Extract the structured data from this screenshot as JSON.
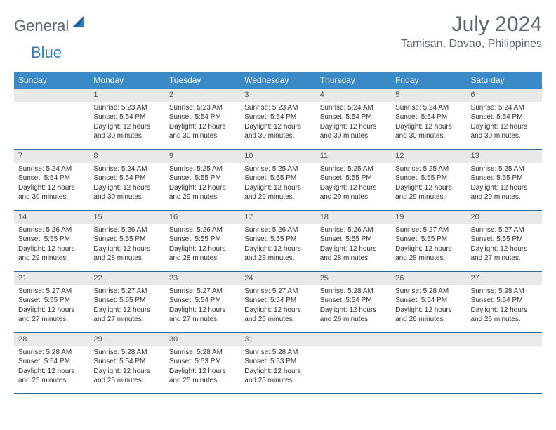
{
  "logo": {
    "general": "General",
    "blue": "Blue"
  },
  "title": "July 2024",
  "location": "Tamisan, Davao, Philippines",
  "weekday_header_bg": "#3a8ac8",
  "weekday_header_fg": "#ffffff",
  "daynum_bg": "#e9e9e9",
  "week_border_color": "#2b6a9e",
  "weekdays": [
    "Sunday",
    "Monday",
    "Tuesday",
    "Wednesday",
    "Thursday",
    "Friday",
    "Saturday"
  ],
  "weeks": [
    [
      {
        "day": "",
        "sunrise": "",
        "sunset": "",
        "daylight": ""
      },
      {
        "day": "1",
        "sunrise": "Sunrise: 5:23 AM",
        "sunset": "Sunset: 5:54 PM",
        "daylight": "Daylight: 12 hours and 30 minutes."
      },
      {
        "day": "2",
        "sunrise": "Sunrise: 5:23 AM",
        "sunset": "Sunset: 5:54 PM",
        "daylight": "Daylight: 12 hours and 30 minutes."
      },
      {
        "day": "3",
        "sunrise": "Sunrise: 5:23 AM",
        "sunset": "Sunset: 5:54 PM",
        "daylight": "Daylight: 12 hours and 30 minutes."
      },
      {
        "day": "4",
        "sunrise": "Sunrise: 5:24 AM",
        "sunset": "Sunset: 5:54 PM",
        "daylight": "Daylight: 12 hours and 30 minutes."
      },
      {
        "day": "5",
        "sunrise": "Sunrise: 5:24 AM",
        "sunset": "Sunset: 5:54 PM",
        "daylight": "Daylight: 12 hours and 30 minutes."
      },
      {
        "day": "6",
        "sunrise": "Sunrise: 5:24 AM",
        "sunset": "Sunset: 5:54 PM",
        "daylight": "Daylight: 12 hours and 30 minutes."
      }
    ],
    [
      {
        "day": "7",
        "sunrise": "Sunrise: 5:24 AM",
        "sunset": "Sunset: 5:54 PM",
        "daylight": "Daylight: 12 hours and 30 minutes."
      },
      {
        "day": "8",
        "sunrise": "Sunrise: 5:24 AM",
        "sunset": "Sunset: 5:54 PM",
        "daylight": "Daylight: 12 hours and 30 minutes."
      },
      {
        "day": "9",
        "sunrise": "Sunrise: 5:25 AM",
        "sunset": "Sunset: 5:55 PM",
        "daylight": "Daylight: 12 hours and 29 minutes."
      },
      {
        "day": "10",
        "sunrise": "Sunrise: 5:25 AM",
        "sunset": "Sunset: 5:55 PM",
        "daylight": "Daylight: 12 hours and 29 minutes."
      },
      {
        "day": "11",
        "sunrise": "Sunrise: 5:25 AM",
        "sunset": "Sunset: 5:55 PM",
        "daylight": "Daylight: 12 hours and 29 minutes."
      },
      {
        "day": "12",
        "sunrise": "Sunrise: 5:25 AM",
        "sunset": "Sunset: 5:55 PM",
        "daylight": "Daylight: 12 hours and 29 minutes."
      },
      {
        "day": "13",
        "sunrise": "Sunrise: 5:25 AM",
        "sunset": "Sunset: 5:55 PM",
        "daylight": "Daylight: 12 hours and 29 minutes."
      }
    ],
    [
      {
        "day": "14",
        "sunrise": "Sunrise: 5:26 AM",
        "sunset": "Sunset: 5:55 PM",
        "daylight": "Daylight: 12 hours and 29 minutes."
      },
      {
        "day": "15",
        "sunrise": "Sunrise: 5:26 AM",
        "sunset": "Sunset: 5:55 PM",
        "daylight": "Daylight: 12 hours and 28 minutes."
      },
      {
        "day": "16",
        "sunrise": "Sunrise: 5:26 AM",
        "sunset": "Sunset: 5:55 PM",
        "daylight": "Daylight: 12 hours and 28 minutes."
      },
      {
        "day": "17",
        "sunrise": "Sunrise: 5:26 AM",
        "sunset": "Sunset: 5:55 PM",
        "daylight": "Daylight: 12 hours and 28 minutes."
      },
      {
        "day": "18",
        "sunrise": "Sunrise: 5:26 AM",
        "sunset": "Sunset: 5:55 PM",
        "daylight": "Daylight: 12 hours and 28 minutes."
      },
      {
        "day": "19",
        "sunrise": "Sunrise: 5:27 AM",
        "sunset": "Sunset: 5:55 PM",
        "daylight": "Daylight: 12 hours and 28 minutes."
      },
      {
        "day": "20",
        "sunrise": "Sunrise: 5:27 AM",
        "sunset": "Sunset: 5:55 PM",
        "daylight": "Daylight: 12 hours and 27 minutes."
      }
    ],
    [
      {
        "day": "21",
        "sunrise": "Sunrise: 5:27 AM",
        "sunset": "Sunset: 5:55 PM",
        "daylight": "Daylight: 12 hours and 27 minutes."
      },
      {
        "day": "22",
        "sunrise": "Sunrise: 5:27 AM",
        "sunset": "Sunset: 5:55 PM",
        "daylight": "Daylight: 12 hours and 27 minutes."
      },
      {
        "day": "23",
        "sunrise": "Sunrise: 5:27 AM",
        "sunset": "Sunset: 5:54 PM",
        "daylight": "Daylight: 12 hours and 27 minutes."
      },
      {
        "day": "24",
        "sunrise": "Sunrise: 5:27 AM",
        "sunset": "Sunset: 5:54 PM",
        "daylight": "Daylight: 12 hours and 26 minutes."
      },
      {
        "day": "25",
        "sunrise": "Sunrise: 5:28 AM",
        "sunset": "Sunset: 5:54 PM",
        "daylight": "Daylight: 12 hours and 26 minutes."
      },
      {
        "day": "26",
        "sunrise": "Sunrise: 5:28 AM",
        "sunset": "Sunset: 5:54 PM",
        "daylight": "Daylight: 12 hours and 26 minutes."
      },
      {
        "day": "27",
        "sunrise": "Sunrise: 5:28 AM",
        "sunset": "Sunset: 5:54 PM",
        "daylight": "Daylight: 12 hours and 26 minutes."
      }
    ],
    [
      {
        "day": "28",
        "sunrise": "Sunrise: 5:28 AM",
        "sunset": "Sunset: 5:54 PM",
        "daylight": "Daylight: 12 hours and 25 minutes."
      },
      {
        "day": "29",
        "sunrise": "Sunrise: 5:28 AM",
        "sunset": "Sunset: 5:54 PM",
        "daylight": "Daylight: 12 hours and 25 minutes."
      },
      {
        "day": "30",
        "sunrise": "Sunrise: 5:28 AM",
        "sunset": "Sunset: 5:53 PM",
        "daylight": "Daylight: 12 hours and 25 minutes."
      },
      {
        "day": "31",
        "sunrise": "Sunrise: 5:28 AM",
        "sunset": "Sunset: 5:53 PM",
        "daylight": "Daylight: 12 hours and 25 minutes."
      },
      {
        "day": "",
        "sunrise": "",
        "sunset": "",
        "daylight": ""
      },
      {
        "day": "",
        "sunrise": "",
        "sunset": "",
        "daylight": ""
      },
      {
        "day": "",
        "sunrise": "",
        "sunset": "",
        "daylight": ""
      }
    ]
  ]
}
